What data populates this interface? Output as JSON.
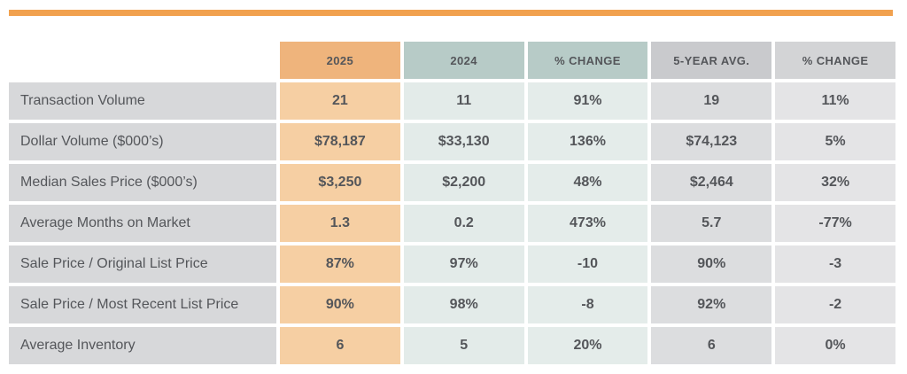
{
  "page": {
    "background_color": "#FFFFFF",
    "accent_rule_color": "#F1A14E",
    "text_color": "#54565A"
  },
  "table": {
    "columns": [
      {
        "key": "row-labels",
        "label": "",
        "header_bg": "transparent",
        "body_bg": "#D7D8DA"
      },
      {
        "key": "2025",
        "label": "2025",
        "header_bg": "#EFB47C",
        "body_bg": "#F6CFA3"
      },
      {
        "key": "2024",
        "label": "2024",
        "header_bg": "#B7CBC7",
        "body_bg": "#E3EBE9"
      },
      {
        "key": "pct-change-yoy",
        "label": "% CHANGE",
        "header_bg": "#B7CBC7",
        "body_bg": "#E4ECEA"
      },
      {
        "key": "5-year-avg",
        "label": "5-YEAR AVG.",
        "header_bg": "#C9CACD",
        "body_bg": "#DCDDDF"
      },
      {
        "key": "pct-change-5yr",
        "label": "% CHANGE",
        "header_bg": "#D3D4D6",
        "body_bg": "#E4E4E6"
      }
    ],
    "rows": [
      {
        "label": "Transaction Volume",
        "values": [
          "21",
          "11",
          "91%",
          "19",
          "11%"
        ]
      },
      {
        "label": "Dollar Volume ($000’s)",
        "values": [
          "$78,187",
          "$33,130",
          "136%",
          "$74,123",
          "5%"
        ]
      },
      {
        "label": "Median Sales Price ($000’s)",
        "values": [
          "$3,250",
          "$2,200",
          "48%",
          "$2,464",
          "32%"
        ]
      },
      {
        "label": "Average Months on Market",
        "values": [
          "1.3",
          "0.2",
          "473%",
          "5.7",
          "-77%"
        ]
      },
      {
        "label": "Sale Price / Original List Price",
        "values": [
          "87%",
          "97%",
          "-10",
          "90%",
          "-3"
        ]
      },
      {
        "label": "Sale Price / Most Recent List Price",
        "values": [
          "90%",
          "98%",
          "-8",
          "92%",
          "-2"
        ]
      },
      {
        "label": "Average Inventory",
        "values": [
          "6",
          "5",
          "20%",
          "6",
          "0%"
        ]
      }
    ]
  },
  "chart_data": {
    "type": "table",
    "title": "",
    "columns": [
      "",
      "2025",
      "2024",
      "% CHANGE",
      "5-YEAR AVG.",
      "% CHANGE"
    ],
    "rows": [
      [
        "Transaction Volume",
        "21",
        "11",
        "91%",
        "19",
        "11%"
      ],
      [
        "Dollar Volume ($000’s)",
        "$78,187",
        "$33,130",
        "136%",
        "$74,123",
        "5%"
      ],
      [
        "Median Sales Price ($000’s)",
        "$3,250",
        "$2,200",
        "48%",
        "$2,464",
        "32%"
      ],
      [
        "Average Months on Market",
        "1.3",
        "0.2",
        "473%",
        "5.7",
        "-77%"
      ],
      [
        "Sale Price / Original List Price",
        "87%",
        "97%",
        "-10",
        "90%",
        "-3"
      ],
      [
        "Sale Price / Most Recent List Price",
        "90%",
        "98%",
        "-8",
        "92%",
        "-2"
      ],
      [
        "Average Inventory",
        "6",
        "5",
        "20%",
        "6",
        "0%"
      ]
    ]
  }
}
